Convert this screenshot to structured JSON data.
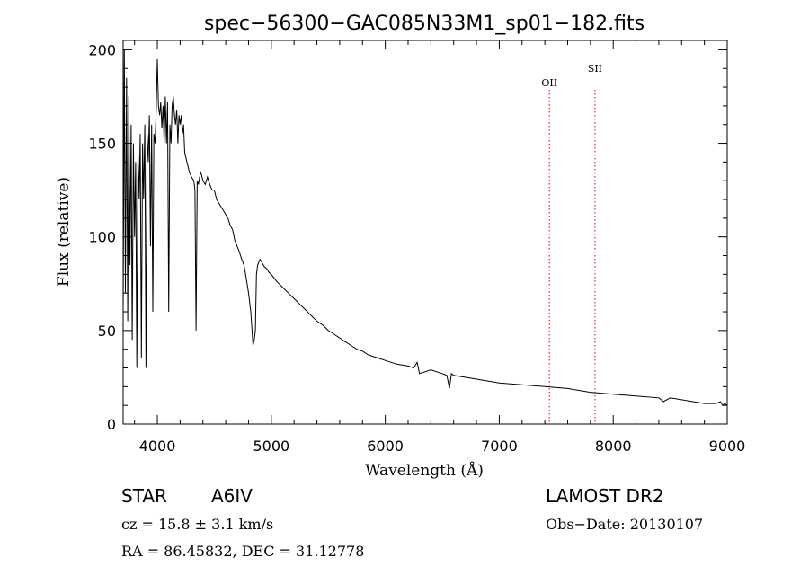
{
  "chart_data": {
    "type": "line",
    "title": "spec−56300−GAC085N33M1_sp01−182.fits",
    "xlabel": "Wavelength (Å)",
    "ylabel": "Flux (relative)",
    "xlim": [
      3700,
      9000
    ],
    "ylim": [
      0,
      205
    ],
    "x_ticks": [
      4000,
      5000,
      6000,
      7000,
      8000,
      9000
    ],
    "y_ticks": [
      0,
      50,
      100,
      150,
      200
    ],
    "grid": false,
    "series": [
      {
        "color": "#000000",
        "x": [
          3700,
          3710,
          3720,
          3730,
          3740,
          3750,
          3760,
          3770,
          3780,
          3790,
          3800,
          3810,
          3820,
          3830,
          3840,
          3850,
          3860,
          3870,
          3880,
          3890,
          3900,
          3910,
          3920,
          3930,
          3940,
          3950,
          3960,
          3970,
          3980,
          3990,
          4000,
          4010,
          4020,
          4030,
          4040,
          4050,
          4060,
          4070,
          4080,
          4090,
          4100,
          4110,
          4120,
          4130,
          4140,
          4150,
          4160,
          4170,
          4180,
          4190,
          4200,
          4210,
          4220,
          4230,
          4240,
          4260,
          4280,
          4300,
          4320,
          4330,
          4340,
          4350,
          4360,
          4380,
          4400,
          4420,
          4440,
          4460,
          4480,
          4500,
          4520,
          4540,
          4560,
          4580,
          4600,
          4620,
          4640,
          4660,
          4680,
          4700,
          4720,
          4740,
          4760,
          4780,
          4800,
          4820,
          4840,
          4850,
          4860,
          4870,
          4880,
          4900,
          4920,
          4940,
          4960,
          4980,
          5000,
          5050,
          5100,
          5150,
          5200,
          5250,
          5300,
          5350,
          5400,
          5450,
          5500,
          5550,
          5600,
          5650,
          5700,
          5750,
          5800,
          5850,
          5900,
          5950,
          6000,
          6100,
          6200,
          6250,
          6280,
          6300,
          6400,
          6500,
          6540,
          6563,
          6580,
          6600,
          6700,
          6800,
          6900,
          7000,
          7200,
          7400,
          7600,
          7800,
          8000,
          8200,
          8400,
          8420,
          8440,
          8500,
          8600,
          8700,
          8800,
          8900,
          8940,
          8960,
          8980,
          9000
        ],
        "y": [
          60,
          200,
          70,
          185,
          55,
          175,
          85,
          160,
          45,
          150,
          100,
          140,
          30,
          145,
          120,
          155,
          35,
          150,
          120,
          160,
          30,
          155,
          140,
          165,
          95,
          160,
          60,
          155,
          150,
          168,
          195,
          170,
          165,
          172,
          158,
          170,
          150,
          175,
          150,
          172,
          60,
          160,
          150,
          170,
          175,
          165,
          160,
          168,
          150,
          165,
          160,
          165,
          155,
          160,
          145,
          140,
          135,
          132,
          130,
          125,
          50,
          130,
          128,
          135,
          130,
          128,
          132,
          128,
          125,
          125,
          120,
          118,
          116,
          114,
          112,
          110,
          106,
          104,
          98,
          95,
          92,
          88,
          85,
          78,
          70,
          60,
          42,
          45,
          50,
          80,
          85,
          88,
          86,
          84,
          83,
          81,
          80,
          76,
          73,
          70,
          67,
          64,
          61,
          58,
          55,
          53,
          50,
          48,
          46,
          44,
          42,
          40,
          39,
          37,
          36,
          35,
          34,
          32,
          31,
          30,
          33,
          27,
          29,
          27,
          26,
          19,
          27,
          26,
          25,
          24,
          23,
          22,
          21,
          20,
          19,
          17,
          16,
          15,
          14,
          13,
          12,
          14,
          13,
          12,
          11,
          11,
          12,
          10,
          11,
          10
        ]
      }
    ],
    "annotations": [
      {
        "label": "OII",
        "x": 7440
      },
      {
        "label": "SII",
        "x": 7840
      }
    ]
  },
  "info": {
    "object_class": "STAR",
    "subclass": "A6IV",
    "survey": "LAMOST DR2",
    "cz": "cz = 15.8 ± 3.1 km/s",
    "obs_date": "Obs−Date: 20130107",
    "coords": "RA =  86.45832, DEC =  31.12778"
  }
}
